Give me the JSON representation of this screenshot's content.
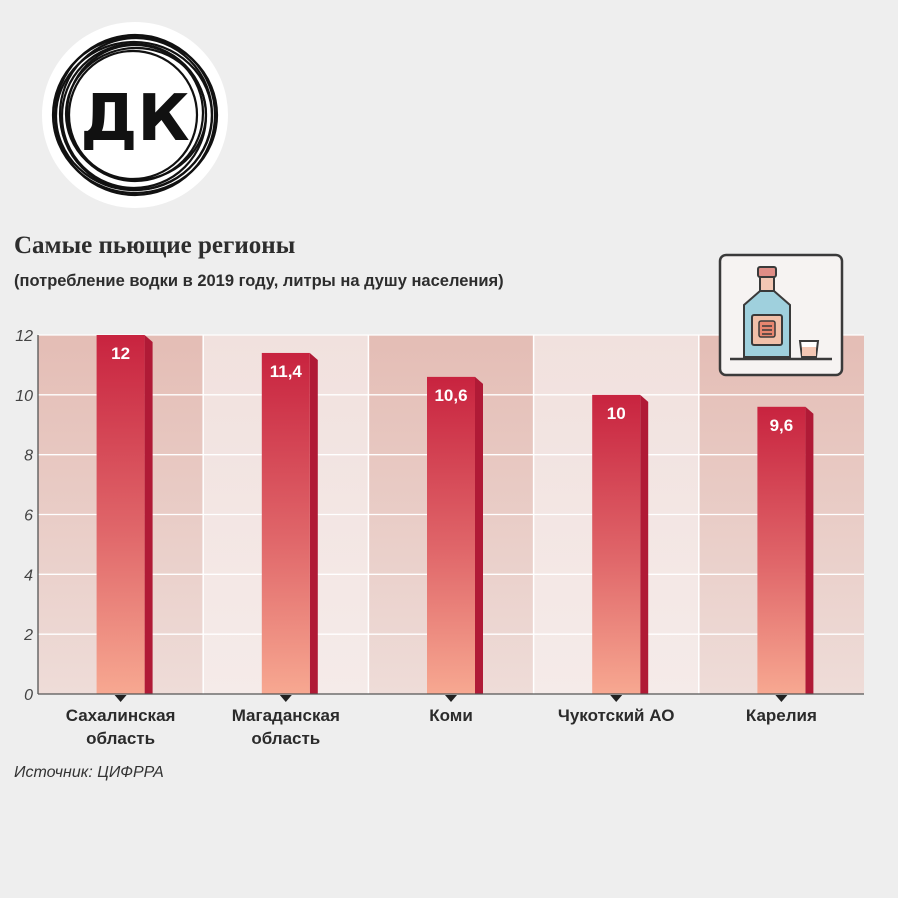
{
  "logo": {
    "text": "ДК"
  },
  "chart_data": {
    "type": "bar",
    "title": "Самые пьющие регионы",
    "subtitle": "(потребление водки в 2019 году, литры на душу населения)",
    "categories": [
      [
        "Сахалинская",
        "область"
      ],
      [
        "Магаданская",
        "область"
      ],
      [
        "Коми"
      ],
      [
        "Чукотский АО"
      ],
      [
        "Карелия"
      ]
    ],
    "values": [
      12,
      11.4,
      10.6,
      10,
      9.6
    ],
    "value_labels": [
      "12",
      "11,4",
      "10,6",
      "10",
      "9,6"
    ],
    "ylim": [
      0,
      12
    ],
    "yticks": [
      0,
      2,
      4,
      6,
      8,
      10,
      12
    ],
    "grid": true,
    "colors": {
      "bar_top": "#c8233f",
      "bar_bottom": "#f7a08e",
      "bar_side": "#b01a36",
      "band_dark": "#e7c2bb",
      "band_light": "#f2e2df"
    }
  },
  "source": "Источник: ЦИФРРА",
  "icon": {
    "name": "vodka-bottle-and-glass-icon"
  }
}
